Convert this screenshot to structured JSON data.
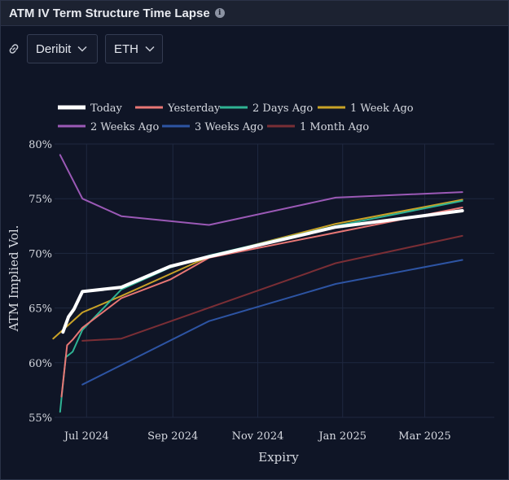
{
  "header": {
    "title": "ATM IV Term Structure Time Lapse",
    "info_icon": "info-icon"
  },
  "toolbar": {
    "link_icon": "link-icon",
    "exchange": "Deribit",
    "asset": "ETH"
  },
  "colors": {
    "background": "#0f1526",
    "grid": "#1f2840",
    "text": "#d6d9e0"
  },
  "chart_data": {
    "type": "line",
    "title": "",
    "xlabel": "Expiry",
    "ylabel": "ATM Implied Vol.",
    "x_type": "date",
    "xlim": [
      "2024-06-08",
      "2025-04-20"
    ],
    "ylim": [
      55,
      80
    ],
    "y_ticks": [
      55,
      60,
      65,
      70,
      75,
      80
    ],
    "y_tick_labels": [
      "55%",
      "60%",
      "65%",
      "70%",
      "75%",
      "80%"
    ],
    "x_ticks": [
      "2024-07-01",
      "2024-09-01",
      "2024-11-01",
      "2025-01-01",
      "2025-03-01"
    ],
    "x_tick_labels": [
      "Jul 2024",
      "Sep 2024",
      "Nov 2024",
      "Jan 2025",
      "Mar 2025"
    ],
    "grid": true,
    "legend_position": "top",
    "series": [
      {
        "name": "Today",
        "color": "#ffffff",
        "width": 4,
        "points": [
          [
            "2024-06-14",
            62.8
          ],
          [
            "2024-06-18",
            64.2
          ],
          [
            "2024-06-22",
            64.9
          ],
          [
            "2024-06-28",
            66.5
          ],
          [
            "2024-07-26",
            66.9
          ],
          [
            "2024-08-30",
            68.8
          ],
          [
            "2024-09-27",
            69.7
          ],
          [
            "2024-12-27",
            72.4
          ],
          [
            "2025-03-28",
            73.9
          ]
        ]
      },
      {
        "name": "Yesterday",
        "color": "#e87775",
        "width": 2,
        "points": [
          [
            "2024-06-13",
            56.9
          ],
          [
            "2024-06-17",
            61.6
          ],
          [
            "2024-06-21",
            62.1
          ],
          [
            "2024-06-28",
            63.2
          ],
          [
            "2024-07-26",
            65.9
          ],
          [
            "2024-08-30",
            67.6
          ],
          [
            "2024-09-27",
            69.6
          ],
          [
            "2024-12-27",
            71.9
          ],
          [
            "2025-03-28",
            74.2
          ]
        ]
      },
      {
        "name": "2 Days Ago",
        "color": "#2fb394",
        "width": 2,
        "points": [
          [
            "2024-06-12",
            55.5
          ],
          [
            "2024-06-16",
            60.5
          ],
          [
            "2024-06-21",
            61.0
          ],
          [
            "2024-06-28",
            63.0
          ],
          [
            "2024-07-26",
            66.7
          ],
          [
            "2024-08-30",
            68.7
          ],
          [
            "2024-09-27",
            69.8
          ],
          [
            "2024-12-27",
            72.5
          ],
          [
            "2025-03-28",
            74.8
          ]
        ]
      },
      {
        "name": "1 Week Ago",
        "color": "#c9a227",
        "width": 2,
        "points": [
          [
            "2024-06-07",
            62.2
          ],
          [
            "2024-06-28",
            64.6
          ],
          [
            "2024-07-26",
            66.1
          ],
          [
            "2024-08-30",
            68.1
          ],
          [
            "2024-09-27",
            69.7
          ],
          [
            "2024-12-27",
            72.7
          ],
          [
            "2025-03-28",
            74.9
          ]
        ]
      },
      {
        "name": "2 Weeks Ago",
        "color": "#9b59b6",
        "width": 2,
        "points": [
          [
            "2024-06-12",
            79.0
          ],
          [
            "2024-06-28",
            75.0
          ],
          [
            "2024-07-26",
            73.4
          ],
          [
            "2024-09-27",
            72.6
          ],
          [
            "2024-12-27",
            75.1
          ],
          [
            "2025-03-28",
            75.6
          ]
        ]
      },
      {
        "name": "3 Weeks Ago",
        "color": "#2d54a3",
        "width": 2,
        "points": [
          [
            "2024-06-28",
            58.0
          ],
          [
            "2024-09-27",
            63.8
          ],
          [
            "2024-12-27",
            67.2
          ],
          [
            "2025-03-28",
            69.4
          ]
        ]
      },
      {
        "name": "1 Month Ago",
        "color": "#7a2e35",
        "width": 2,
        "points": [
          [
            "2024-06-28",
            62.0
          ],
          [
            "2024-07-26",
            62.2
          ],
          [
            "2024-12-27",
            69.1
          ],
          [
            "2025-03-28",
            71.6
          ]
        ]
      }
    ]
  }
}
